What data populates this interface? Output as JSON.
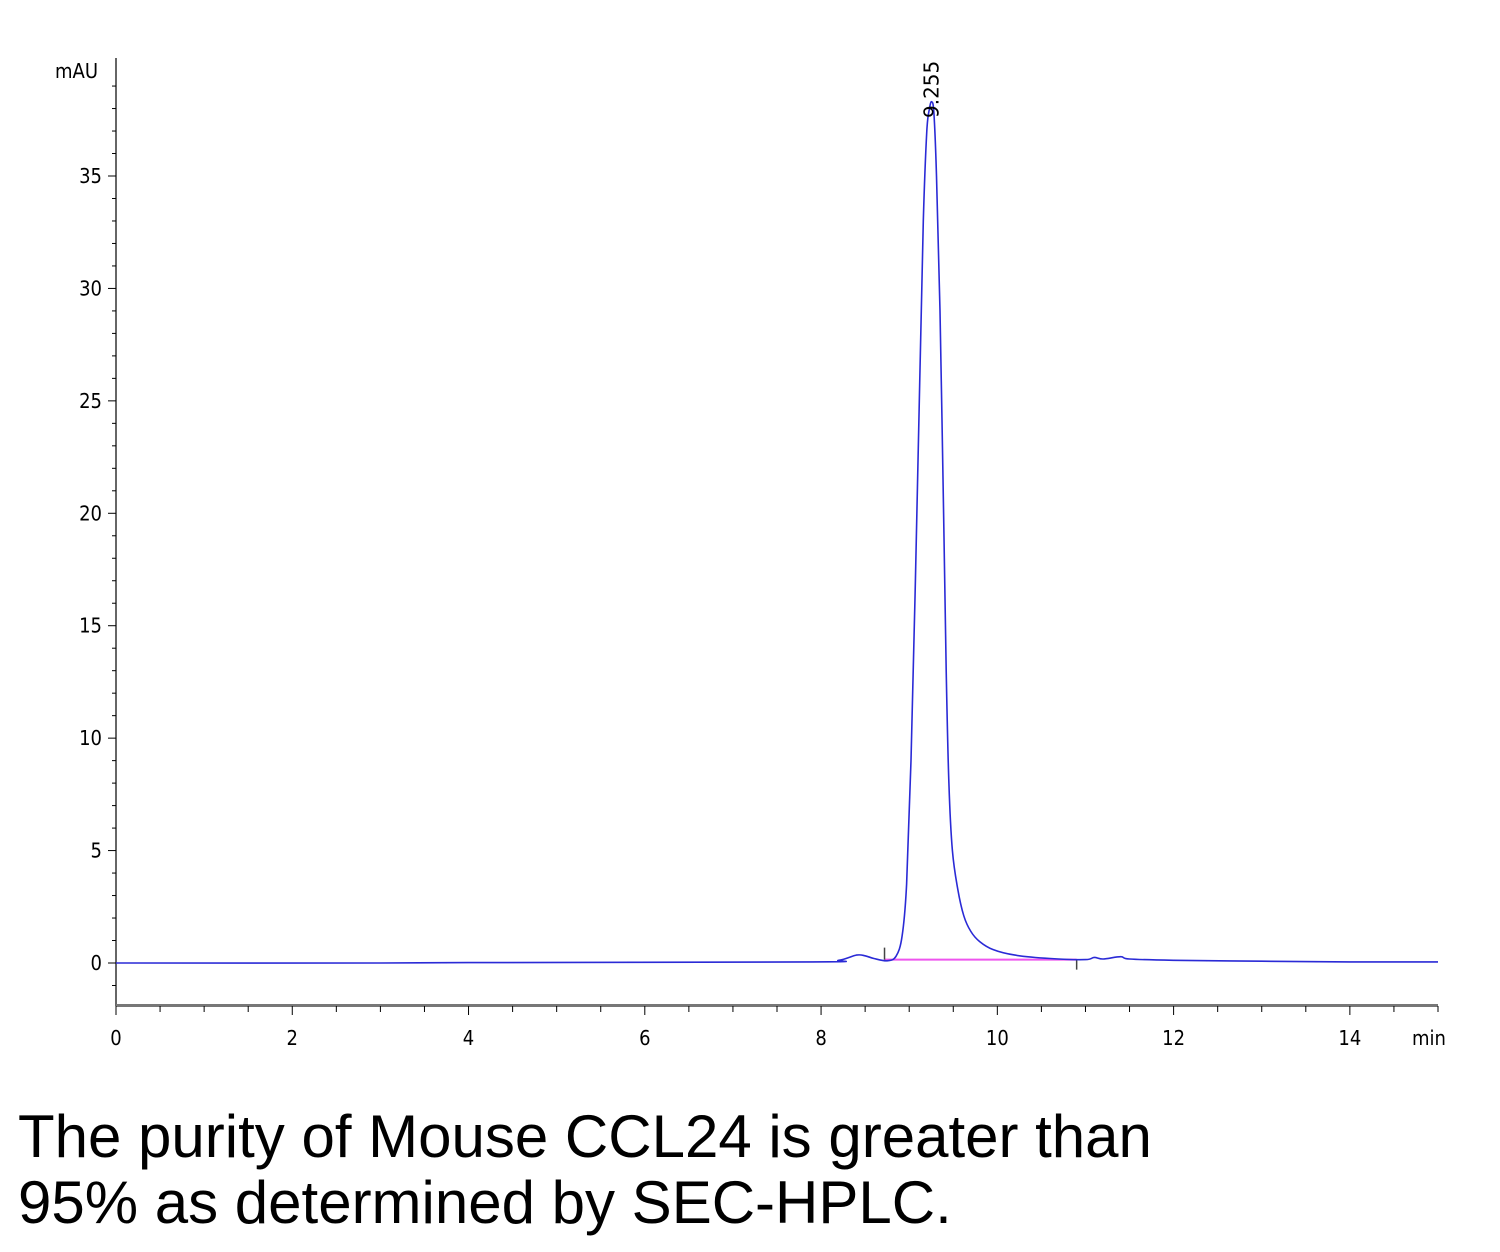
{
  "chart_data": {
    "type": "line",
    "title": "",
    "ylabel": "mAU",
    "xlabel": "min",
    "xlim": [
      0,
      15
    ],
    "ylim": [
      -2,
      40
    ],
    "x_ticks": [
      0,
      2,
      4,
      6,
      8,
      10,
      12,
      14
    ],
    "y_ticks": [
      0,
      5,
      10,
      15,
      20,
      25,
      30,
      35
    ],
    "peak_annotation": {
      "x": 9.255,
      "label": "9.255"
    },
    "baseline_segment": {
      "x": [
        8.72,
        10.9
      ],
      "y": [
        0.15,
        0.15
      ]
    },
    "series": [
      {
        "color": "#2a2ad6",
        "x": [
          0,
          3,
          4,
          7.9,
          8.2,
          8.4,
          8.5,
          8.6,
          8.75,
          8.85,
          8.92,
          8.97,
          9.02,
          9.07,
          9.12,
          9.16,
          9.2,
          9.23,
          9.255,
          9.28,
          9.31,
          9.35,
          9.39,
          9.42,
          9.45,
          9.49,
          9.55,
          9.62,
          9.7,
          9.8,
          9.95,
          10.2,
          10.6,
          11.0,
          11.1,
          11.2,
          11.4,
          11.5,
          12.0,
          13.0,
          14.0,
          15.0
        ],
        "y": [
          0.0,
          0.0,
          0.02,
          0.05,
          0.12,
          0.35,
          0.32,
          0.2,
          0.1,
          0.3,
          1.2,
          3.5,
          9.0,
          17.0,
          26.0,
          33.0,
          37.0,
          38.0,
          38.3,
          37.8,
          35.0,
          29.0,
          20.0,
          13.0,
          8.0,
          5.0,
          3.3,
          2.1,
          1.4,
          0.95,
          0.6,
          0.35,
          0.2,
          0.15,
          0.25,
          0.18,
          0.28,
          0.18,
          0.12,
          0.08,
          0.05,
          0.05
        ]
      }
    ]
  },
  "colors": {
    "trace": "#2a2ad6",
    "baseline": "#ee55ee",
    "axis": "#777777"
  },
  "caption": {
    "line1": "The purity of Mouse CCL24 is greater than",
    "line2": "95% as determined by SEC-HPLC."
  }
}
